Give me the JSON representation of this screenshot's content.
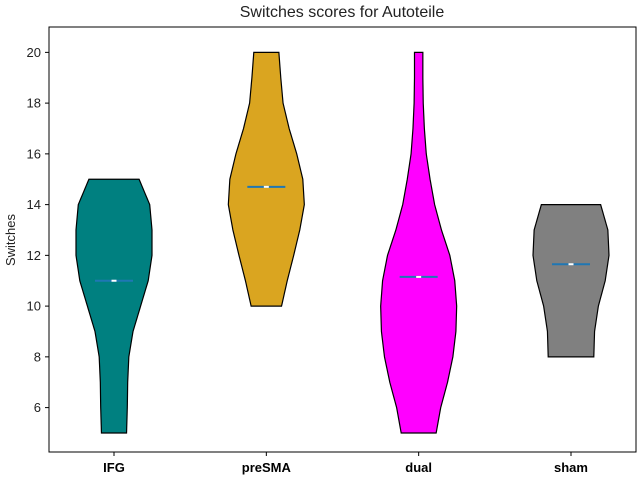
{
  "chart_data": {
    "type": "violin",
    "title": "Switches scores for Autoteile",
    "xlabel": "",
    "ylabel": "Switches",
    "ylim": [
      4.25,
      21.0
    ],
    "yticks": [
      6,
      8,
      10,
      12,
      14,
      16,
      18,
      20
    ],
    "grid": false,
    "categories": [
      "IFG",
      "preSMA",
      "dual",
      "sham"
    ],
    "series": [
      {
        "category": "IFG",
        "color": "#008080",
        "min": 5,
        "max": 15,
        "mean": 11.0,
        "profile": [
          [
            5,
            0.33
          ],
          [
            6,
            0.35
          ],
          [
            7,
            0.36
          ],
          [
            8,
            0.39
          ],
          [
            9,
            0.5
          ],
          [
            10,
            0.7
          ],
          [
            11,
            0.9
          ],
          [
            12,
            1.0
          ],
          [
            13,
            1.0
          ],
          [
            14,
            0.94
          ],
          [
            15,
            0.66
          ]
        ]
      },
      {
        "category": "preSMA",
        "color": "#DAA520",
        "min": 10,
        "max": 20,
        "mean": 14.7,
        "profile": [
          [
            10,
            0.4
          ],
          [
            11,
            0.55
          ],
          [
            12,
            0.72
          ],
          [
            13,
            0.88
          ],
          [
            14,
            1.0
          ],
          [
            15,
            0.96
          ],
          [
            16,
            0.8
          ],
          [
            17,
            0.6
          ],
          [
            18,
            0.44
          ],
          [
            19,
            0.38
          ],
          [
            20,
            0.33
          ]
        ]
      },
      {
        "category": "dual",
        "color": "#FF00FF",
        "min": 5,
        "max": 20,
        "mean": 11.15,
        "profile": [
          [
            5,
            0.46
          ],
          [
            6,
            0.58
          ],
          [
            7,
            0.76
          ],
          [
            8,
            0.9
          ],
          [
            9,
            0.98
          ],
          [
            10,
            1.0
          ],
          [
            11,
            0.95
          ],
          [
            12,
            0.82
          ],
          [
            13,
            0.6
          ],
          [
            14,
            0.42
          ],
          [
            15,
            0.3
          ],
          [
            16,
            0.2
          ],
          [
            17,
            0.15
          ],
          [
            18,
            0.12
          ],
          [
            19,
            0.11
          ],
          [
            20,
            0.11
          ]
        ]
      },
      {
        "category": "sham",
        "color": "#808080",
        "min": 8,
        "max": 14,
        "mean": 11.65,
        "profile": [
          [
            8,
            0.6
          ],
          [
            9,
            0.62
          ],
          [
            10,
            0.72
          ],
          [
            11,
            0.9
          ],
          [
            12,
            1.0
          ],
          [
            13,
            0.97
          ],
          [
            14,
            0.78
          ]
        ]
      }
    ]
  }
}
